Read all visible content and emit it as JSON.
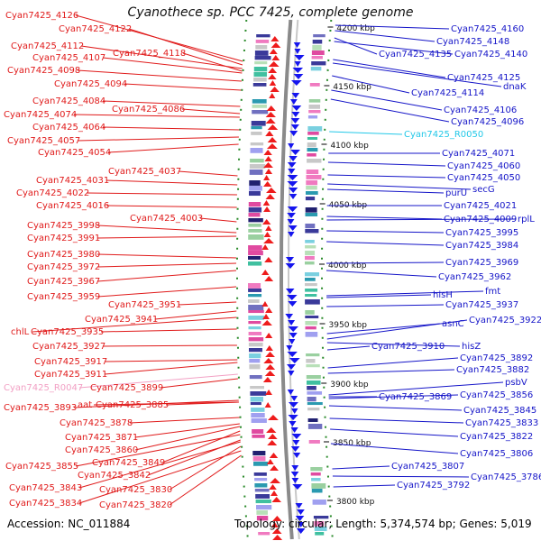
{
  "title": "Cyanothece sp. PCC 7425, complete genome",
  "accession": "Accession: NC_011884",
  "summary": "Topology: circular; Length: 5,374,574 bp; Genes: 5,019",
  "colors": {
    "left_label": "#e01a1a",
    "right_label": "#1515c8",
    "left_arrow": "#ee1c1c",
    "right_arrow": "#1515ee",
    "rna_left": "#f2a0c4",
    "rna_right": "#22c8e8",
    "backbone": "#8a8a8a",
    "tick_green": "#2a8a2a"
  },
  "scale_labels": [
    "4200 kbp",
    "4150 kbp",
    "4100 kbp",
    "4050 kbp",
    "4000 kbp",
    "3950 kbp",
    "3900 kbp",
    "3850 kbp",
    "3800 kbp"
  ],
  "left_labels": [
    "Cyan7425_4126",
    "Cyan7425_4122",
    "Cyan7425_4112",
    "Cyan7425_4118",
    "Cyan7425_4107",
    "Cyan7425_4098",
    "Cyan7425_4094",
    "Cyan7425_4084",
    "Cyan7425_4086",
    "Cyan7425_4074",
    "Cyan7425_4064",
    "Cyan7425_4057",
    "Cyan7425_4054",
    "Cyan7425_4037",
    "Cyan7425_4031",
    "Cyan7425_4022",
    "Cyan7425_4016",
    "Cyan7425_4003",
    "Cyan7425_3998",
    "Cyan7425_3991",
    "Cyan7425_3980",
    "Cyan7425_3972",
    "Cyan7425_3967",
    "Cyan7425_3959",
    "Cyan7425_3951",
    "Cyan7425_3941",
    "chlL",
    "Cyan7425_3935",
    "Cyan7425_3927",
    "Cyan7425_3917",
    "Cyan7425_3911",
    "Cyan7425_R0047",
    "Cyan7425_3899",
    "Cyan7425_3893",
    "aat",
    "Cyan7425_3885",
    "Cyan7425_3878",
    "Cyan7425_3871",
    "Cyan7425_3860",
    "Cyan7425_3849",
    "Cyan7425_3855",
    "Cyan7425_3842",
    "Cyan7425_3843",
    "Cyan7425_3830",
    "Cyan7425_3834",
    "Cyan7425_3820"
  ],
  "right_labels": [
    "Cyan7425_4160",
    "Cyan7425_4148",
    "Cyan7425_4135",
    "Cyan7425_4140",
    "Cyan7425_4125",
    "dnaK",
    "Cyan7425_4114",
    "Cyan7425_4106",
    "Cyan7425_4096",
    "Cyan7425_R0050",
    "Cyan7425_4071",
    "Cyan7425_4060",
    "Cyan7425_4050",
    "secG",
    "purU",
    "Cyan7425_4021",
    "Cyan7425_4009",
    "rplL",
    "Cyan7425_3995",
    "Cyan7425_3984",
    "Cyan7425_3969",
    "Cyan7425_3962",
    "fmt",
    "hisH",
    "Cyan7425_3937",
    "Cyan7425_3922",
    "asnC",
    "Cyan7425_3910",
    "hisZ",
    "Cyan7425_3892",
    "Cyan7425_3882",
    "psbV",
    "Cyan7425_3869",
    "Cyan7425_3856",
    "Cyan7425_3845",
    "Cyan7425_3833",
    "Cyan7425_3822",
    "Cyan7425_3806",
    "Cyan7425_3807",
    "Cyan7425_3786",
    "Cyan7425_3792"
  ]
}
